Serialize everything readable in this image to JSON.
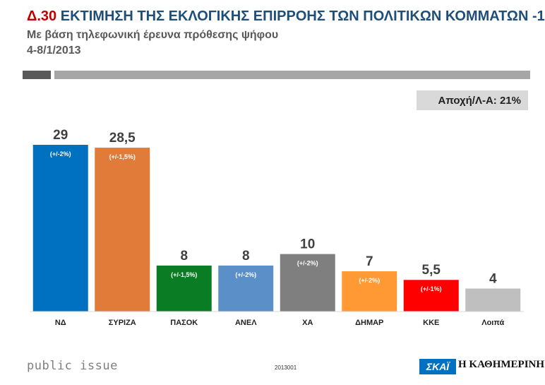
{
  "header": {
    "code": "Δ.30",
    "title": "ΕΚΤΙΜΗΣΗ ΤΗΣ ΕΚΛΟΓΙΚΗΣ ΕΠΙΡΡΟΗΣ ΤΩΝ ΠΟΛΙΤΙΚΩΝ ΚΟΜΜΑΤΩΝ -1",
    "subtitle": "Με βάση τηλεφωνική έρευνα πρόθεσης ψήφου",
    "date": "4-8/1/2013"
  },
  "abstention_label": "Αποχή/Λ-Α: 21%",
  "footer": {
    "brand": "public issue",
    "code": "2013001",
    "logo_skai": "ΣΚΑΪ",
    "logo_kathimerini": "Η ΚΑΘΗΜΕΡΙΝΗ"
  },
  "chart_data": {
    "type": "bar",
    "categories": [
      "ΝΔ",
      "ΣΥΡΙΖΑ",
      "ΠΑΣΟΚ",
      "ΑΝΕΛ",
      "ΧΑ",
      "ΔΗΜΑΡ",
      "ΚΚΕ",
      "Λοιπά"
    ],
    "values": [
      29,
      28.5,
      8,
      8,
      10,
      7,
      5.5,
      4
    ],
    "value_labels": [
      "29",
      "28,5",
      "8",
      "8",
      "10",
      "7",
      "5,5",
      "4"
    ],
    "margins": [
      "(+/-2%)",
      "(+/-1,5%)",
      "(+/-1,5%)",
      "(+/-2%)",
      "(+/-2%)",
      "(+/-2%)",
      "(+/-1%)",
      ""
    ],
    "colors": [
      "#0070c0",
      "#e07b39",
      "#0a7d24",
      "#5b8fc7",
      "#7f7f7f",
      "#ff9933",
      "#ff0000",
      "#bfbfbf"
    ],
    "ylim": [
      0,
      30
    ]
  }
}
